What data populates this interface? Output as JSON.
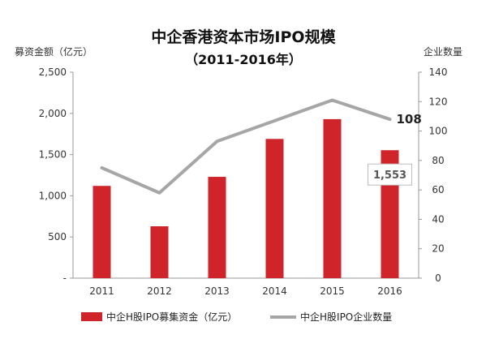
{
  "chart_data": {
    "type": "bar",
    "title": "中企香港资本市场IPO规模",
    "subtitle": "（2011-2016年）",
    "categories": [
      "2011",
      "2012",
      "2013",
      "2014",
      "2015",
      "2016"
    ],
    "series": [
      {
        "name": "中企H股IPO募集资金（亿元）",
        "type": "bar",
        "axis": "left",
        "color": "#d0242b",
        "values": [
          1120,
          630,
          1230,
          1690,
          1930,
          1553
        ]
      },
      {
        "name": "中企H股IPO企业数量",
        "type": "line",
        "axis": "right",
        "color": "#a6a6a6",
        "values": [
          75,
          58,
          93,
          107,
          121,
          108
        ]
      }
    ],
    "ylabel_left": "募资金额（亿元）",
    "ylabel_right": "企业数量",
    "ylim_left": [
      0,
      2500
    ],
    "ylim_right": [
      0,
      140
    ],
    "yticks_left": [
      "-",
      "500",
      "1,000",
      "1,500",
      "2,000",
      "2,500"
    ],
    "yticks_right": [
      "0",
      "20",
      "40",
      "60",
      "80",
      "100",
      "120",
      "140"
    ],
    "data_labels": {
      "line_last": "108",
      "bar_last": "1,553"
    },
    "legend_position": "bottom",
    "grid": false
  }
}
